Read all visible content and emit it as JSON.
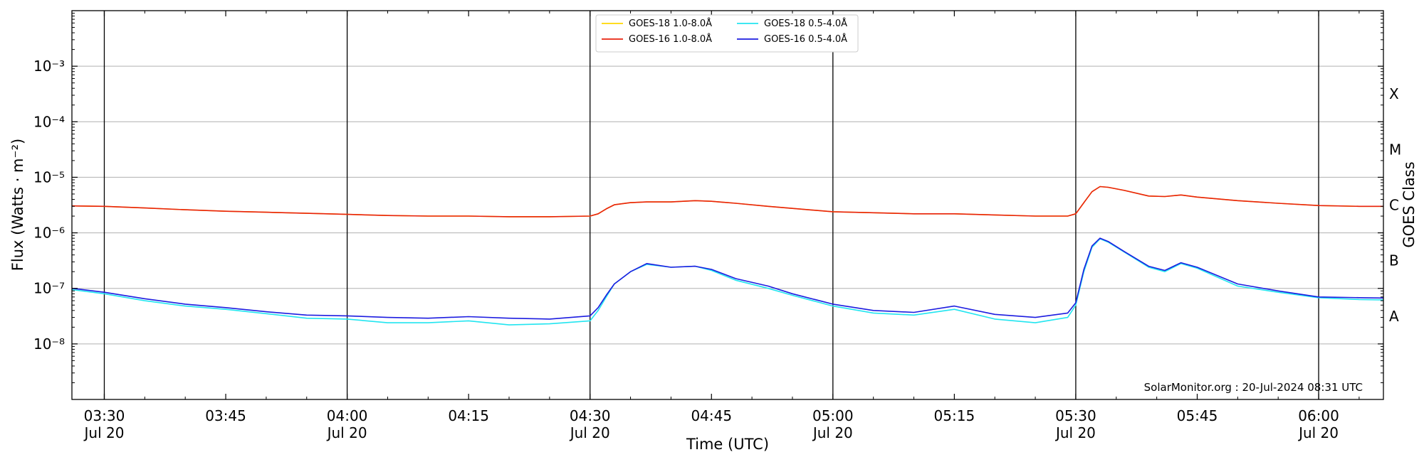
{
  "chart_data": {
    "type": "line",
    "xlabel": "Time (UTC)",
    "ylabel": "Flux (Watts · m⁻²)",
    "y2label": "GOES Class",
    "yscale": "log",
    "ylim": [
      1e-09,
      0.01
    ],
    "xlim_minutes": [
      206,
      368
    ],
    "grid": "horizontal",
    "legend_position": "top-center",
    "credit": "SolarMonitor.org : 20-Jul-2024 08:31 UTC",
    "y_ticks": [
      {
        "value": 1e-08,
        "label": "10⁻⁸"
      },
      {
        "value": 1e-07,
        "label": "10⁻⁷"
      },
      {
        "value": 1e-06,
        "label": "10⁻⁶"
      },
      {
        "value": 1e-05,
        "label": "10⁻⁵"
      },
      {
        "value": 0.0001,
        "label": "10⁻⁴"
      },
      {
        "value": 0.001,
        "label": "10⁻³"
      }
    ],
    "x_ticks": [
      {
        "time": "03:30",
        "date": "Jul 20"
      },
      {
        "time": "03:45",
        "date": ""
      },
      {
        "time": "04:00",
        "date": "Jul 20"
      },
      {
        "time": "04:15",
        "date": ""
      },
      {
        "time": "04:30",
        "date": "Jul 20"
      },
      {
        "time": "04:45",
        "date": ""
      },
      {
        "time": "05:00",
        "date": "Jul 20"
      },
      {
        "time": "05:15",
        "date": ""
      },
      {
        "time": "05:30",
        "date": "Jul 20"
      },
      {
        "time": "05:45",
        "date": ""
      },
      {
        "time": "06:00",
        "date": "Jul 20"
      }
    ],
    "goes_classes": [
      {
        "label": "A",
        "value": 3.16e-08
      },
      {
        "label": "B",
        "value": 3.16e-07
      },
      {
        "label": "C",
        "value": 3.16e-06
      },
      {
        "label": "M",
        "value": 3.16e-05
      },
      {
        "label": "X",
        "value": 0.000316
      }
    ],
    "x": [
      "03:26",
      "03:30",
      "03:35",
      "03:40",
      "03:45",
      "03:50",
      "03:55",
      "04:00",
      "04:05",
      "04:10",
      "04:15",
      "04:20",
      "04:25",
      "04:30",
      "04:31",
      "04:32",
      "04:33",
      "04:35",
      "04:37",
      "04:40",
      "04:43",
      "04:45",
      "04:48",
      "04:52",
      "04:55",
      "05:00",
      "05:05",
      "05:10",
      "05:15",
      "05:20",
      "05:25",
      "05:29",
      "05:30",
      "05:31",
      "05:32",
      "05:33",
      "05:34",
      "05:36",
      "05:39",
      "05:41",
      "05:43",
      "05:45",
      "05:50",
      "05:55",
      "06:00",
      "06:05",
      "06:08"
    ],
    "series": [
      {
        "name": "GOES-18 1.0-8.0Å",
        "color": "#ffd700",
        "values": [
          3.05e-06,
          3e-06,
          2.8e-06,
          2.6e-06,
          2.45e-06,
          2.35e-06,
          2.25e-06,
          2.15e-06,
          2.05e-06,
          2e-06,
          2e-06,
          1.95e-06,
          1.95e-06,
          2e-06,
          2.2e-06,
          2.7e-06,
          3.2e-06,
          3.5e-06,
          3.6e-06,
          3.6e-06,
          3.8e-06,
          3.7e-06,
          3.4e-06,
          3e-06,
          2.75e-06,
          2.4e-06,
          2.3e-06,
          2.2e-06,
          2.2e-06,
          2.1e-06,
          2e-06,
          2e-06,
          2.2e-06,
          3.5e-06,
          5.5e-06,
          6.8e-06,
          6.6e-06,
          5.8e-06,
          4.6e-06,
          4.5e-06,
          4.8e-06,
          4.4e-06,
          3.8e-06,
          3.4e-06,
          3.1e-06,
          3e-06,
          3e-06
        ]
      },
      {
        "name": "GOES-16 1.0-8.0Å",
        "color": "#e8220e",
        "values": [
          3.05e-06,
          3e-06,
          2.8e-06,
          2.6e-06,
          2.45e-06,
          2.35e-06,
          2.25e-06,
          2.15e-06,
          2.05e-06,
          2e-06,
          2e-06,
          1.95e-06,
          1.95e-06,
          2e-06,
          2.2e-06,
          2.7e-06,
          3.2e-06,
          3.5e-06,
          3.6e-06,
          3.6e-06,
          3.8e-06,
          3.7e-06,
          3.4e-06,
          3e-06,
          2.75e-06,
          2.4e-06,
          2.3e-06,
          2.2e-06,
          2.2e-06,
          2.1e-06,
          2e-06,
          2e-06,
          2.2e-06,
          3.5e-06,
          5.5e-06,
          6.8e-06,
          6.6e-06,
          5.8e-06,
          4.6e-06,
          4.5e-06,
          4.8e-06,
          4.4e-06,
          3.8e-06,
          3.4e-06,
          3.1e-06,
          3e-06,
          3e-06
        ]
      },
      {
        "name": "GOES-18 0.5-4.0Å",
        "color": "#22e5f0",
        "values": [
          9.5e-08,
          8e-08,
          6e-08,
          4.8e-08,
          4.2e-08,
          3.5e-08,
          2.9e-08,
          2.8e-08,
          2.4e-08,
          2.4e-08,
          2.6e-08,
          2.2e-08,
          2.3e-08,
          2.6e-08,
          4e-08,
          7e-08,
          1.2e-07,
          2e-07,
          2.7e-07,
          2.4e-07,
          2.5e-07,
          2.1e-07,
          1.4e-07,
          1e-07,
          7.5e-08,
          4.8e-08,
          3.6e-08,
          3.3e-08,
          4.2e-08,
          2.8e-08,
          2.4e-08,
          3e-08,
          5e-08,
          2e-07,
          5.5e-07,
          7.8e-07,
          6.8e-07,
          4.5e-07,
          2.4e-07,
          2e-07,
          2.8e-07,
          2.3e-07,
          1.1e-07,
          8.5e-08,
          6.8e-08,
          6.3e-08,
          6.2e-08
        ]
      },
      {
        "name": "GOES-16 0.5-4.0Å",
        "color": "#1c1ce0",
        "values": [
          1e-07,
          8.5e-08,
          6.5e-08,
          5.2e-08,
          4.5e-08,
          3.8e-08,
          3.3e-08,
          3.2e-08,
          3e-08,
          2.9e-08,
          3.1e-08,
          2.9e-08,
          2.8e-08,
          3.2e-08,
          4.5e-08,
          7.5e-08,
          1.2e-07,
          2e-07,
          2.8e-07,
          2.4e-07,
          2.5e-07,
          2.2e-07,
          1.5e-07,
          1.1e-07,
          8e-08,
          5.2e-08,
          4e-08,
          3.7e-08,
          4.8e-08,
          3.4e-08,
          3e-08,
          3.6e-08,
          5.5e-08,
          2.2e-07,
          5.8e-07,
          8e-07,
          7e-07,
          4.6e-07,
          2.5e-07,
          2.1e-07,
          2.9e-07,
          2.4e-07,
          1.2e-07,
          9e-08,
          7e-08,
          6.8e-08,
          6.7e-08
        ]
      }
    ]
  }
}
